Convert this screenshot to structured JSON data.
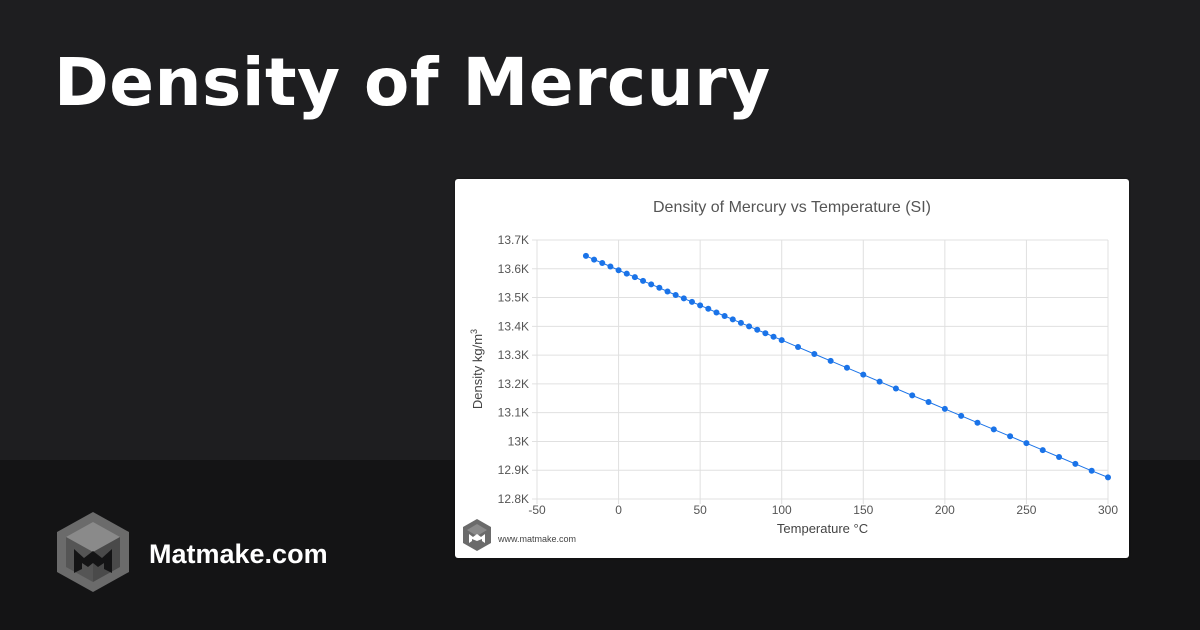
{
  "page": {
    "title": "Density of Mercury",
    "brand_name": "Matmake.com"
  },
  "colors": {
    "background": "#1e1e20",
    "bottom_band": "#141415",
    "series": "#1a73e8",
    "grid": "#e0e0e0",
    "logo": "#6b6b6b"
  },
  "icons": {
    "brand_logo": "matmake-hexagon-m-logo",
    "watermark_logo": "matmake-hexagon-m-logo"
  },
  "chart_data": {
    "type": "line",
    "title": "Density of Mercury vs Temperature (SI)",
    "xlabel": "Temperature °C",
    "ylabel_main": "Density kg/m",
    "ylabel_sup": "3",
    "xlim": [
      -50,
      300
    ],
    "ylim": [
      12800,
      13700
    ],
    "x_ticks": [
      -50,
      0,
      50,
      100,
      150,
      200,
      250,
      300
    ],
    "x_tick_labels": [
      "-50",
      "0",
      "50",
      "100",
      "150",
      "200",
      "250",
      "300"
    ],
    "y_ticks": [
      12800,
      12900,
      13000,
      13100,
      13200,
      13300,
      13400,
      13500,
      13600,
      13700
    ],
    "y_tick_labels": [
      "12.8K",
      "12.9K",
      "13K",
      "13.1K",
      "13.2K",
      "13.3K",
      "13.4K",
      "13.5K",
      "13.6K",
      "13.7K"
    ],
    "grid": true,
    "legend": "none",
    "watermark": "www.matmake.com",
    "series": [
      {
        "x": [
          -20,
          -15,
          -10,
          -5,
          0,
          5,
          10,
          15,
          20,
          25,
          30,
          35,
          40,
          45,
          50,
          55,
          60,
          65,
          70,
          75,
          80,
          85,
          90,
          95,
          100,
          110,
          120,
          130,
          140,
          150,
          160,
          170,
          180,
          190,
          200,
          210,
          220,
          230,
          240,
          250,
          260,
          270,
          280,
          290,
          300
        ],
        "y": [
          13645,
          13632,
          13620,
          13608,
          13595,
          13583,
          13571,
          13558,
          13546,
          13534,
          13521,
          13509,
          13497,
          13485,
          13473,
          13461,
          13448,
          13436,
          13424,
          13412,
          13400,
          13388,
          13376,
          13364,
          13352,
          13328,
          13304,
          13280,
          13256,
          13232,
          13208,
          13184,
          13160,
          13137,
          13113,
          13089,
          13065,
          13042,
          13018,
          12994,
          12970,
          12946,
          12922,
          12898,
          12875
        ]
      }
    ]
  }
}
